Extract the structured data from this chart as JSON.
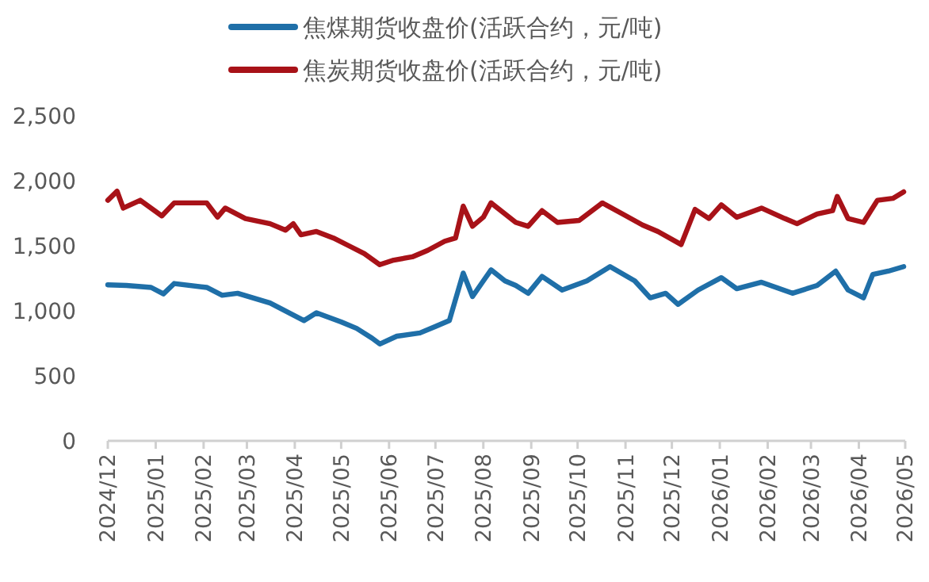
{
  "chart_data": {
    "type": "line",
    "legend": "top",
    "ylim": [
      0,
      2500
    ],
    "yticks": [
      0,
      {
        "value": 500,
        "label": "500"
      },
      {
        "value": 1000,
        "label": "1,000"
      },
      {
        "value": 1500,
        "label": "1,500"
      },
      {
        "value": 2000,
        "label": "2,000"
      },
      {
        "value": 2500,
        "label": "2,500"
      }
    ],
    "xlim": [
      "2024-12-01",
      "2026-05-01"
    ],
    "xticks": [
      {
        "value": "2024-12",
        "label": "2024/12"
      },
      {
        "value": "2025-01",
        "label": "2025/01"
      },
      {
        "value": "2025-02",
        "label": "2025/02"
      },
      {
        "value": "2025-03",
        "label": "2025/03"
      },
      {
        "value": "2025-04",
        "label": "2025/04"
      },
      {
        "value": "2025-05",
        "label": "2025/05"
      },
      {
        "value": "2025-06",
        "label": "2025/06"
      },
      {
        "value": "2025-07",
        "label": "2025/07"
      },
      {
        "value": "2025-08",
        "label": "2025/08"
      },
      {
        "value": "2025-09",
        "label": "2025/09"
      },
      {
        "value": "2025-10",
        "label": "2025/10"
      },
      {
        "value": "2025-11",
        "label": "2025/11"
      },
      {
        "value": "2025-12",
        "label": "2025/12"
      },
      {
        "value": "2026-01",
        "label": "2026/01"
      },
      {
        "value": "2026-02",
        "label": "2026/02"
      },
      {
        "value": "2026-03",
        "label": "2026/03"
      },
      {
        "value": "2026-04",
        "label": "2026/04"
      },
      {
        "value": "2026-05",
        "label": "2026/05"
      }
    ],
    "series": [
      {
        "name": "焦煤期货收盘价(活跃合约，元/吨)",
        "color": "#1f6fa8",
        "x": [
          "2024-12-01",
          "2024-12-13",
          "2024-12-29",
          "2025-01-06",
          "2025-01-13",
          "2025-02-03",
          "2025-02-13",
          "2025-02-23",
          "2025-03-16",
          "2025-04-07",
          "2025-04-15",
          "2025-05-01",
          "2025-05-11",
          "2025-05-21",
          "2025-05-26",
          "2025-06-06",
          "2025-06-21",
          "2025-07-01",
          "2025-07-10",
          "2025-07-19",
          "2025-07-25",
          "2025-08-01",
          "2025-08-06",
          "2025-08-15",
          "2025-08-22",
          "2025-08-30",
          "2025-09-08",
          "2025-09-21",
          "2025-10-07",
          "2025-10-22",
          "2025-11-07",
          "2025-11-17",
          "2025-11-27",
          "2025-12-05",
          "2025-12-18",
          "2026-01-02",
          "2026-01-12",
          "2026-01-28",
          "2026-02-17",
          "2026-03-05",
          "2026-03-17",
          "2026-03-25",
          "2026-04-04",
          "2026-04-10",
          "2026-04-20",
          "2026-04-30"
        ],
        "values": [
          1200,
          1195,
          1180,
          1130,
          1210,
          1180,
          1120,
          1135,
          1060,
          925,
          985,
          915,
          865,
          790,
          745,
          805,
          830,
          880,
          925,
          1290,
          1110,
          1230,
          1315,
          1230,
          1195,
          1135,
          1265,
          1160,
          1230,
          1340,
          1230,
          1100,
          1135,
          1050,
          1160,
          1255,
          1170,
          1220,
          1135,
          1195,
          1305,
          1160,
          1100,
          1280,
          1305,
          1340
        ]
      },
      {
        "name": "焦炭期货收盘价(活跃合约，元/吨)",
        "color": "#a81218",
        "x": [
          "2024-12-01",
          "2024-12-07",
          "2024-12-11",
          "2024-12-22",
          "2025-01-05",
          "2025-01-13",
          "2025-02-03",
          "2025-02-10",
          "2025-02-15",
          "2025-02-28",
          "2025-03-16",
          "2025-03-26",
          "2025-03-31",
          "2025-04-05",
          "2025-04-15",
          "2025-04-26",
          "2025-05-06",
          "2025-05-16",
          "2025-05-26",
          "2025-06-04",
          "2025-06-16",
          "2025-06-26",
          "2025-07-07",
          "2025-07-14",
          "2025-07-19",
          "2025-07-25",
          "2025-08-01",
          "2025-08-06",
          "2025-08-15",
          "2025-08-22",
          "2025-08-30",
          "2025-09-08",
          "2025-09-18",
          "2025-10-02",
          "2025-10-17",
          "2025-10-30",
          "2025-11-12",
          "2025-11-22",
          "2025-12-07",
          "2025-12-16",
          "2025-12-25",
          "2026-01-02",
          "2026-01-12",
          "2026-01-28",
          "2026-02-12",
          "2026-02-20",
          "2026-03-05",
          "2026-03-15",
          "2026-03-18",
          "2026-03-25",
          "2026-04-04",
          "2026-04-13",
          "2026-04-23",
          "2026-04-30"
        ],
        "values": [
          1850,
          1920,
          1790,
          1850,
          1730,
          1830,
          1830,
          1720,
          1790,
          1710,
          1670,
          1620,
          1670,
          1585,
          1610,
          1560,
          1500,
          1440,
          1355,
          1390,
          1415,
          1465,
          1535,
          1560,
          1805,
          1650,
          1720,
          1830,
          1745,
          1680,
          1650,
          1770,
          1680,
          1695,
          1830,
          1745,
          1660,
          1610,
          1510,
          1780,
          1710,
          1815,
          1720,
          1790,
          1710,
          1670,
          1745,
          1770,
          1880,
          1710,
          1680,
          1850,
          1865,
          1915
        ]
      }
    ]
  }
}
